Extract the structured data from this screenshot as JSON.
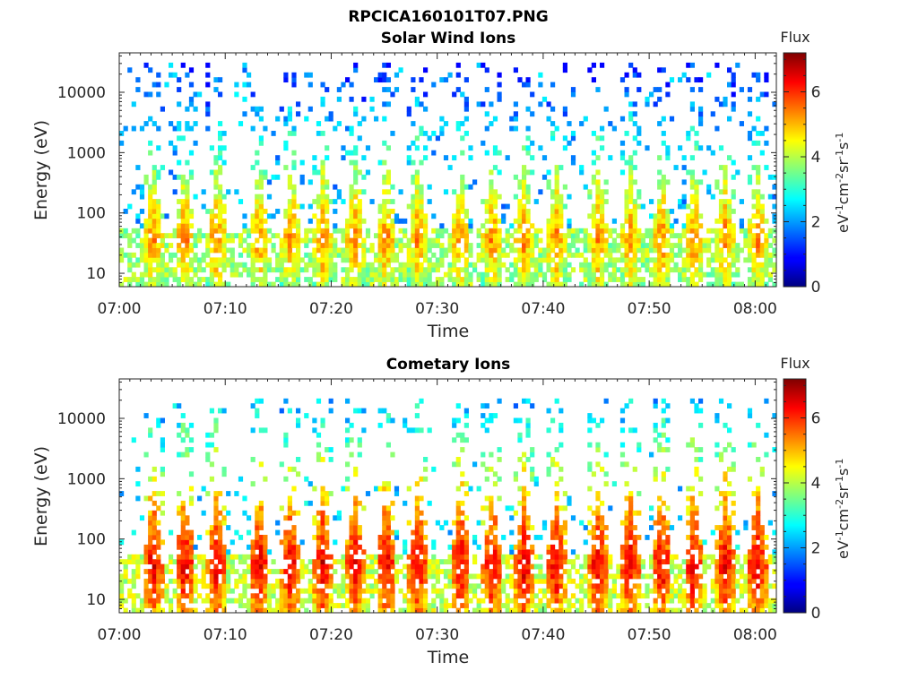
{
  "figure": {
    "title": "RPCICA160101T07.PNG"
  },
  "chart_data": [
    {
      "type": "heatmap",
      "title": "Solar Wind Ions",
      "xlabel": "Time",
      "ylabel": "Energy (eV)",
      "y_scale": "log",
      "ylim": [
        6,
        45000
      ],
      "xlim": [
        "07:00",
        "08:02"
      ],
      "x_ticks": [
        "07:00",
        "07:10",
        "07:20",
        "07:30",
        "07:40",
        "07:50",
        "08:00"
      ],
      "y_ticks": [
        "10",
        "100",
        "1000",
        "10000"
      ],
      "y_tick_values": [
        10,
        100,
        1000,
        10000
      ],
      "colorbar": {
        "label": "Flux",
        "unit_label": "eV-1cm-2sr-1s-1",
        "range": [
          0,
          7.2
        ],
        "ticks": [
          "0",
          "2",
          "4",
          "6"
        ],
        "tick_values": [
          0,
          2,
          4,
          6
        ],
        "colormap": "jet"
      },
      "signal": {
        "scan_times": [
          "07:03",
          "07:06",
          "07:09",
          "07:13",
          "07:16",
          "07:19",
          "07:22",
          "07:25",
          "07:28",
          "07:32",
          "07:35",
          "07:38",
          "07:41",
          "07:45",
          "07:48",
          "07:51",
          "07:54",
          "07:57",
          "08:00"
        ],
        "peak_energy_eV": 35,
        "peak_flux": 5.5,
        "background_flux": 1.3,
        "max_energy_eV": 30000
      }
    },
    {
      "type": "heatmap",
      "title": "Cometary Ions",
      "xlabel": "Time",
      "ylabel": "Energy (eV)",
      "y_scale": "log",
      "ylim": [
        6,
        45000
      ],
      "xlim": [
        "07:00",
        "08:02"
      ],
      "x_ticks": [
        "07:00",
        "07:10",
        "07:20",
        "07:30",
        "07:40",
        "07:50",
        "08:00"
      ],
      "y_ticks": [
        "10",
        "100",
        "1000",
        "10000"
      ],
      "y_tick_values": [
        10,
        100,
        1000,
        10000
      ],
      "colorbar": {
        "label": "Flux",
        "unit_label": "eV-1cm-2sr-1s-1",
        "range": [
          0,
          7.2
        ],
        "ticks": [
          "0",
          "2",
          "4",
          "6"
        ],
        "tick_values": [
          0,
          2,
          4,
          6
        ],
        "colormap": "jet"
      },
      "signal": {
        "scan_times": [
          "07:03",
          "07:06",
          "07:09",
          "07:13",
          "07:16",
          "07:19",
          "07:22",
          "07:25",
          "07:28",
          "07:32",
          "07:35",
          "07:38",
          "07:41",
          "07:45",
          "07:48",
          "07:51",
          "07:54",
          "07:57",
          "08:00"
        ],
        "peak_energy_eV": 35,
        "peak_flux": 6.6,
        "background_flux": 1.6,
        "max_energy_eV": 20000
      }
    }
  ]
}
